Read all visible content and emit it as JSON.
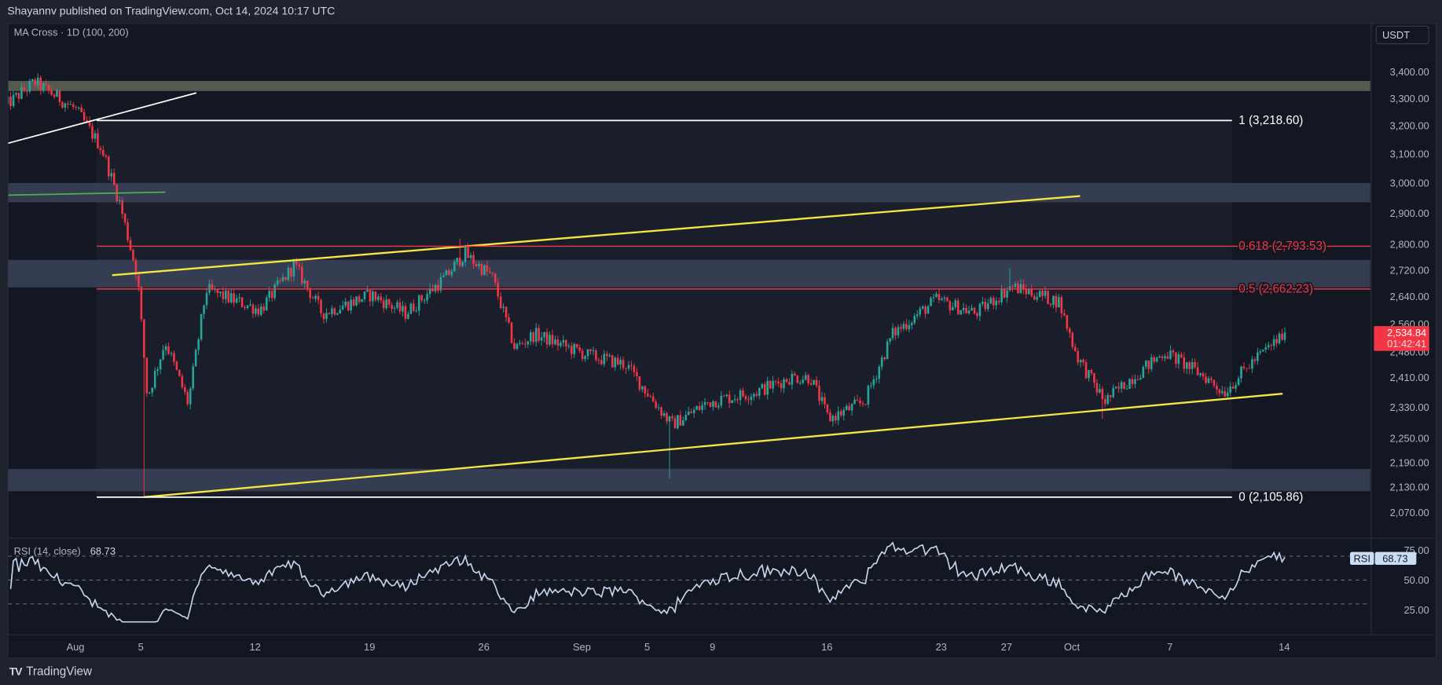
{
  "header": {
    "published": "Shayannv published on TradingView.com, Oct 14, 2024 10:17 UTC"
  },
  "legend": {
    "indicator": "MA Cross · 1D (100, 200)"
  },
  "currency_button": "USDT",
  "footer": {
    "brand": "TradingView"
  },
  "colors": {
    "up": "#26a69a",
    "down": "#f23645",
    "trend": "#f5e642",
    "fib_red": "#f23645",
    "zone_blue": "#3a4358",
    "zone_gray": "#5a5c55",
    "rsi": "#c7d7ef"
  },
  "chart_data": {
    "type": "candlestick",
    "symbol_quote": "USDT",
    "x_unit": "days since Aug 1, 2024",
    "price_scale": "log",
    "path": [
      {
        "day": -4.3,
        "price": 3272
      },
      {
        "day": -2.5,
        "price": 3360
      },
      {
        "day": 0,
        "price": 3260
      },
      {
        "day": 1.6,
        "price": 3120
      },
      {
        "day": 2.7,
        "price": 2935
      },
      {
        "day": 3.8,
        "price": 2700
      },
      {
        "day": 4.4,
        "price": 2355
      },
      {
        "day": 5.5,
        "price": 2510
      },
      {
        "day": 6.9,
        "price": 2340
      },
      {
        "day": 8.0,
        "price": 2660
      },
      {
        "day": 11.3,
        "price": 2600
      },
      {
        "day": 13.4,
        "price": 2735
      },
      {
        "day": 15.1,
        "price": 2590
      },
      {
        "day": 18.1,
        "price": 2645
      },
      {
        "day": 20.2,
        "price": 2590
      },
      {
        "day": 22.7,
        "price": 2700
      },
      {
        "day": 23.8,
        "price": 2770
      },
      {
        "day": 25.5,
        "price": 2700
      },
      {
        "day": 26.9,
        "price": 2490
      },
      {
        "day": 28.1,
        "price": 2530
      },
      {
        "day": 31.4,
        "price": 2470
      },
      {
        "day": 33.7,
        "price": 2445
      },
      {
        "day": 36.5,
        "price": 2285
      },
      {
        "day": 38.8,
        "price": 2345
      },
      {
        "day": 41.6,
        "price": 2370
      },
      {
        "day": 43.8,
        "price": 2410
      },
      {
        "day": 45.0,
        "price": 2410
      },
      {
        "day": 46.1,
        "price": 2300
      },
      {
        "day": 48.3,
        "price": 2345
      },
      {
        "day": 50.0,
        "price": 2530
      },
      {
        "day": 52.7,
        "price": 2630
      },
      {
        "day": 55.1,
        "price": 2590
      },
      {
        "day": 57.3,
        "price": 2670
      },
      {
        "day": 60.2,
        "price": 2625
      },
      {
        "day": 61.3,
        "price": 2470
      },
      {
        "day": 63.0,
        "price": 2345
      },
      {
        "day": 64.7,
        "price": 2410
      },
      {
        "day": 66.7,
        "price": 2480
      },
      {
        "day": 69.2,
        "price": 2410
      },
      {
        "day": 70.3,
        "price": 2370
      },
      {
        "day": 72.1,
        "price": 2455
      },
      {
        "day": 74.1,
        "price": 2534.84
      }
    ],
    "extremes": [
      {
        "day": -2.3,
        "high": 3395
      },
      {
        "day": 4.2,
        "low": 2106
      },
      {
        "day": 23.6,
        "high": 2818
      },
      {
        "day": 36.3,
        "low": 2150
      },
      {
        "day": 57.2,
        "high": 2725
      },
      {
        "day": 62.8,
        "low": 2300
      }
    ],
    "last_price": "2,534.84",
    "countdown": "01:42:41",
    "price_ticks": [
      3400,
      3300,
      3200,
      3100,
      3000,
      2900,
      2800,
      2720,
      2640,
      2560,
      2480,
      2410,
      2330,
      2250,
      2190,
      2130,
      2070
    ],
    "price_tick_labels": [
      "3,400.00",
      "3,300.00",
      "3,200.00",
      "3,100.00",
      "3,000.00",
      "2,900.00",
      "2,800.00",
      "2,720.00",
      "2,640.00",
      "2,560.00",
      "2,480.00",
      "2,410.00",
      "2,330.00",
      "2,250.00",
      "2,190.00",
      "2,130.00",
      "2,070.00"
    ],
    "date_ticks": [
      {
        "label": "Aug",
        "day": 0
      },
      {
        "label": "5",
        "day": 4
      },
      {
        "label": "12",
        "day": 11
      },
      {
        "label": "19",
        "day": 18
      },
      {
        "label": "26",
        "day": 25
      },
      {
        "label": "Sep",
        "day": 31
      },
      {
        "label": "5",
        "day": 35
      },
      {
        "label": "9",
        "day": 39
      },
      {
        "label": "16",
        "day": 46
      },
      {
        "label": "23",
        "day": 53
      },
      {
        "label": "27",
        "day": 57
      },
      {
        "label": "Oct",
        "day": 61
      },
      {
        "label": "7",
        "day": 67
      },
      {
        "label": "14",
        "day": 74
      }
    ],
    "fib_levels": [
      {
        "ratio": 1,
        "price": 3218.6,
        "label": "1 (3,218.60)",
        "color": "white"
      },
      {
        "ratio": 0.618,
        "price": 2793.53,
        "label": "0.618 (2,793.53)",
        "color": "red"
      },
      {
        "ratio": 0.5,
        "price": 2662.23,
        "label": "0.5 (2,662.23)",
        "color": "red"
      },
      {
        "ratio": 0,
        "price": 2105.86,
        "label": "0 (2,105.86)",
        "color": "white"
      }
    ],
    "fib_range_days": [
      1.3,
      70.8
    ],
    "zones": [
      {
        "name": "resistance-zone-gray",
        "top": 3365,
        "bottom": 3327,
        "color": "gray"
      },
      {
        "name": "zone-3000",
        "top": 3000,
        "bottom": 2935,
        "color": "blue"
      },
      {
        "name": "zone-2700",
        "top": 2751,
        "bottom": 2667,
        "color": "blue"
      },
      {
        "name": "zone-2150",
        "top": 2174,
        "bottom": 2120,
        "color": "blue"
      }
    ],
    "trendlines": [
      {
        "name": "channel-upper-line",
        "color": "yellow",
        "from": {
          "day": 2.25,
          "price": 2704
        },
        "to": {
          "day": 61.5,
          "price": 2956
        }
      },
      {
        "name": "channel-lower-line",
        "color": "yellow",
        "from": {
          "day": 4.2,
          "price": 2106
        },
        "to": {
          "day": 73.9,
          "price": 2366
        }
      },
      {
        "name": "broken-trendline",
        "color": "white",
        "from": {
          "day": -4.2,
          "price": 3136
        },
        "to": {
          "day": 7.4,
          "price": 3320
        }
      },
      {
        "name": "green-level-line",
        "color": "green",
        "from": {
          "day": -4.2,
          "price": 2959
        },
        "to": {
          "day": 5.5,
          "price": 2969
        }
      }
    ],
    "rsi": {
      "title": "RSI (14, close)",
      "value": "68.73",
      "tag": "RSI",
      "period": 14,
      "levels": [
        70,
        50,
        30
      ],
      "ticks": [
        75,
        50,
        25
      ],
      "tick_labels": [
        "75.00",
        "50.00",
        "25.00"
      ]
    }
  }
}
